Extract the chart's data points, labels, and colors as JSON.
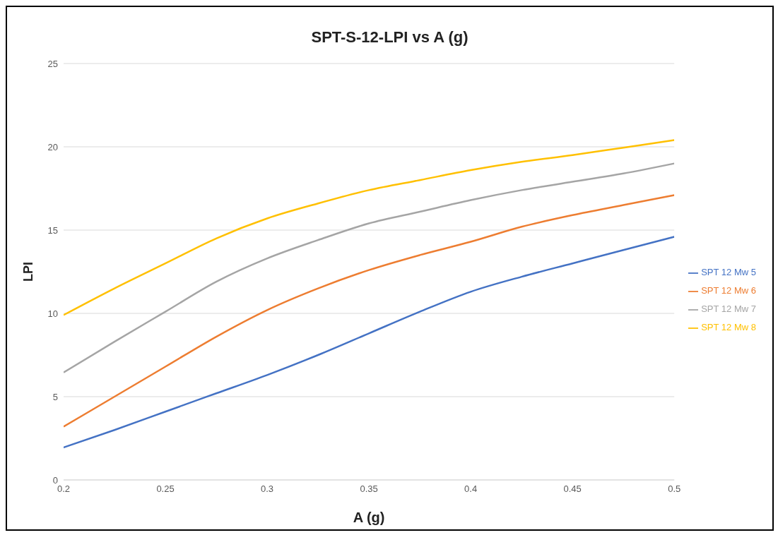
{
  "chart_data": {
    "type": "line",
    "title": "SPT-S-12-LPI vs A (g)",
    "xlabel": "A (g)",
    "ylabel": "LPI",
    "x": [
      0.2,
      0.225,
      0.25,
      0.275,
      0.3,
      0.325,
      0.35,
      0.375,
      0.4,
      0.425,
      0.45,
      0.475,
      0.5
    ],
    "series": [
      {
        "name": "SPT 12 Mw 5",
        "color": "#4472c4",
        "values": [
          1.95,
          3.0,
          4.1,
          5.2,
          6.3,
          7.5,
          8.8,
          10.1,
          11.3,
          12.2,
          13.0,
          13.8,
          14.6
        ]
      },
      {
        "name": "SPT 12 Mw 6",
        "color": "#ed7d31",
        "values": [
          3.2,
          5.0,
          6.8,
          8.6,
          10.2,
          11.5,
          12.6,
          13.5,
          14.3,
          15.2,
          15.9,
          16.5,
          17.1
        ]
      },
      {
        "name": "SPT 12 Mw 7",
        "color": "#a5a5a5",
        "values": [
          6.45,
          8.3,
          10.1,
          11.9,
          13.3,
          14.4,
          15.4,
          16.1,
          16.8,
          17.4,
          17.9,
          18.4,
          19.0
        ]
      },
      {
        "name": "SPT 12 Mw 8",
        "color": "#ffc000",
        "values": [
          9.9,
          11.5,
          13.0,
          14.5,
          15.7,
          16.6,
          17.4,
          18.0,
          18.6,
          19.1,
          19.5,
          19.95,
          20.4
        ]
      }
    ],
    "xlim": [
      0.2,
      0.5
    ],
    "xticks": [
      0.2,
      0.25,
      0.3,
      0.35,
      0.4,
      0.45,
      0.5
    ],
    "ylim": [
      0,
      25
    ],
    "yticks": [
      0,
      5,
      10,
      15,
      20,
      25
    ],
    "grid": "y",
    "legend": "right",
    "marker": "none",
    "line_style": "solid"
  }
}
